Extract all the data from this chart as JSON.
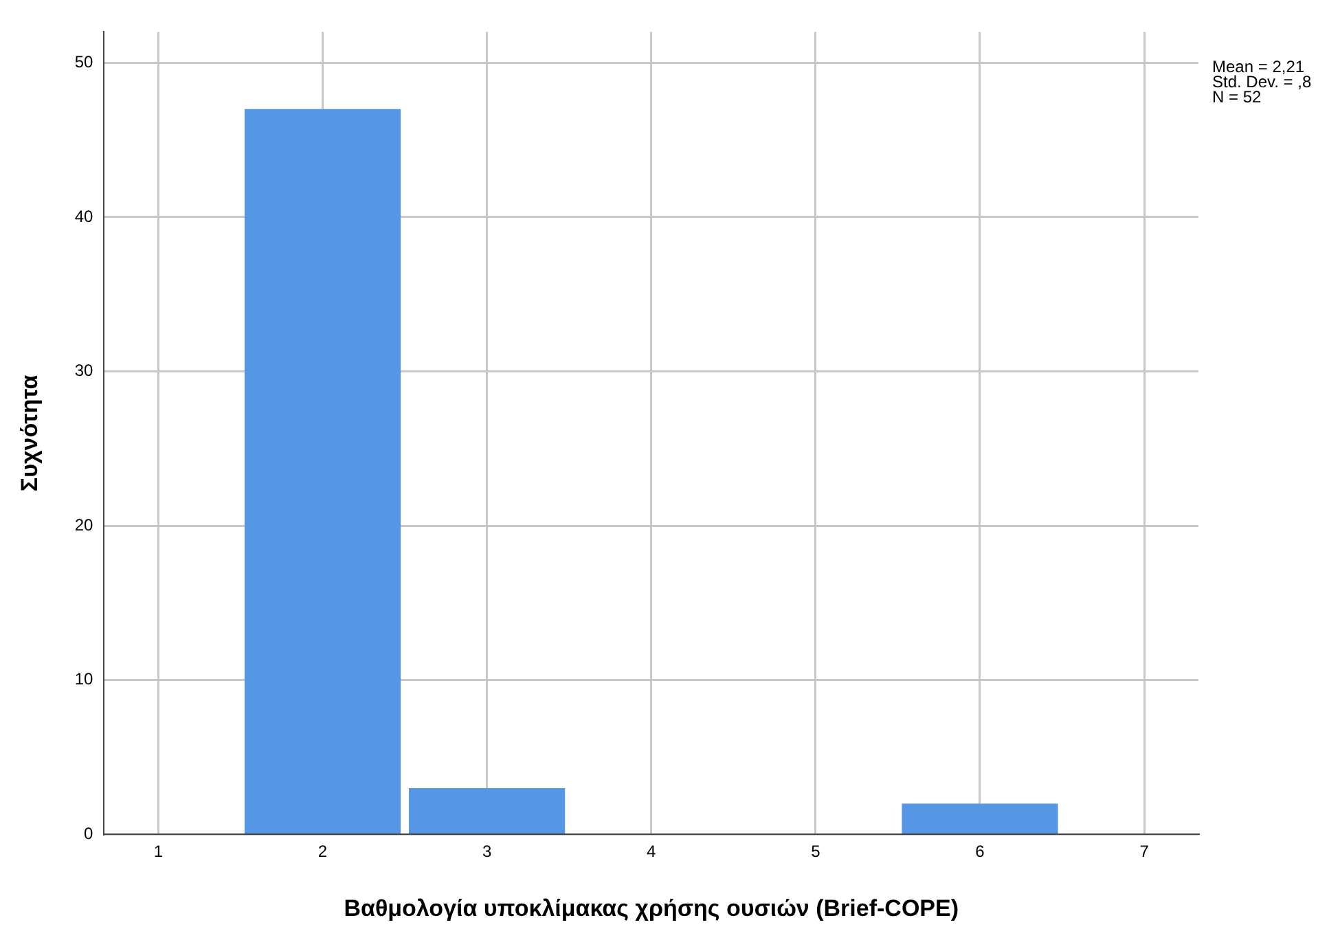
{
  "chart_data": {
    "type": "histogram",
    "xlabel": "Βαθμολογία υποκλίμακας χρήσης ουσιών (Brief-COPE)",
    "ylabel": "Συχνότητα",
    "bins": [
      1.5,
      2.5,
      3.5,
      4.5,
      5.5,
      6.5
    ],
    "values": [
      47,
      3,
      0,
      0,
      2
    ],
    "color": "#5596e5",
    "xlim": [
      0.67,
      7.33
    ],
    "xticks": [
      1,
      2,
      3,
      4,
      5,
      6,
      7
    ],
    "ylim": [
      0,
      52
    ],
    "yticks": [
      0,
      10,
      20,
      30,
      40,
      50
    ],
    "grid": true,
    "legend": false,
    "annotations": [
      "Mean = 2,21",
      "Std. Dev. = ,8",
      "N = 52"
    ]
  }
}
